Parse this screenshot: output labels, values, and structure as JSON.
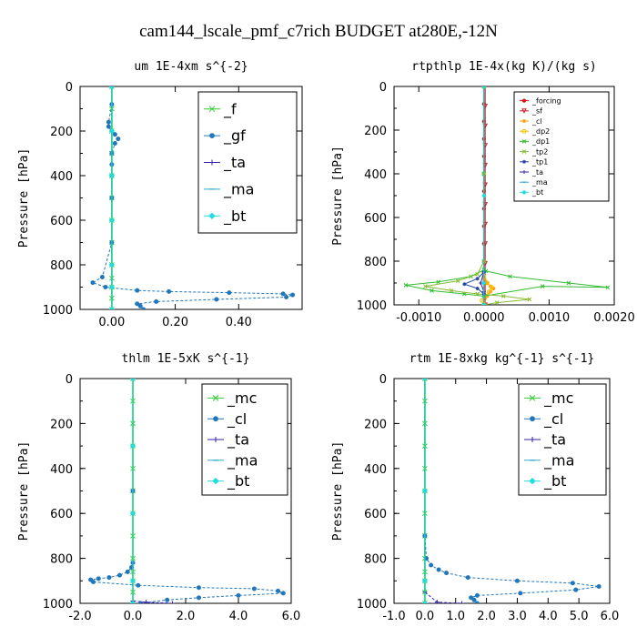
{
  "figure_title": "cam144_lscale_pmf_c7rich  BUDGET at280E,-12N",
  "colors": {
    "f": "#33cc33",
    "gf": "#2277bb",
    "ta": "#3322aa",
    "ma": "#33aacc",
    "bt": "#22dddd",
    "mc": "#33cc33",
    "cl": "#2277bb",
    "forcing": "#dd1111",
    "sf": "#cc2222",
    "cl_small": "#ff9900",
    "dp2": "#ffbb00",
    "dp1": "#33bb33",
    "tp2": "#88bb33",
    "tp1": "#2244aa",
    "bt_light": "#22dddd"
  },
  "chart_data": [
    {
      "type": "line",
      "title": "um   1E-4xm s^{-2}",
      "ylabel": "Pressure [hPa]",
      "xlim": [
        -0.1,
        0.6
      ],
      "ylim": [
        1000,
        0
      ],
      "xticks": [
        0.0,
        0.2,
        0.4
      ],
      "xtick_labels": [
        "0.00",
        "0.20",
        "0.40"
      ],
      "yticks": [
        0,
        200,
        400,
        600,
        800,
        1000
      ],
      "ytick_labels": [
        "0",
        "200",
        "400",
        "600",
        "800",
        "1000"
      ],
      "legend": {
        "position": "top-right",
        "size": "large"
      },
      "series": [
        {
          "name": "_f",
          "color_key": "f",
          "marker": "x",
          "dashed": false,
          "x": [
            0,
            0,
            0,
            0,
            0,
            0,
            0,
            0,
            0,
            0,
            0,
            0,
            0
          ],
          "y": [
            0,
            100,
            200,
            300,
            400,
            500,
            600,
            700,
            800,
            860,
            900,
            950,
            1000
          ]
        },
        {
          "name": "_gf",
          "color_key": "gf",
          "marker": "dot",
          "dashed": true,
          "x": [
            0,
            0.0,
            -0.01,
            -0.01,
            0.01,
            0.02,
            0.01,
            0.0,
            0.0,
            0.0,
            0.0,
            0.0,
            -0.03,
            -0.06,
            -0.02,
            0.08,
            0.18,
            0.37,
            0.54,
            0.57,
            0.55,
            0.33,
            0.14,
            0.08,
            0.09,
            0.1
          ],
          "y": [
            0,
            80,
            160,
            180,
            215,
            235,
            255,
            300,
            350,
            400,
            500,
            700,
            855,
            880,
            900,
            915,
            920,
            925,
            930,
            935,
            945,
            955,
            965,
            975,
            985,
            1000
          ]
        },
        {
          "name": "_ta",
          "color_key": "ta",
          "marker": "plus",
          "dashed": true,
          "x": [
            0,
            0,
            0,
            0,
            0,
            0,
            0
          ],
          "y": [
            0,
            200,
            400,
            600,
            800,
            900,
            1000
          ]
        },
        {
          "name": "_ma",
          "color_key": "ma",
          "marker": "dash",
          "dashed": true,
          "x": [
            0,
            0,
            0,
            0,
            0,
            0,
            0
          ],
          "y": [
            0,
            200,
            400,
            600,
            800,
            900,
            1000
          ]
        },
        {
          "name": "_bt",
          "color_key": "bt",
          "marker": "diamond",
          "dashed": false,
          "x": [
            0,
            0,
            0,
            0,
            0,
            0,
            0
          ],
          "y": [
            0,
            200,
            400,
            600,
            800,
            900,
            1000
          ]
        }
      ]
    },
    {
      "type": "line",
      "title": "rtpthlp   1E-4x(kg K)/(kg s)",
      "ylabel": "Pressure [hPa]",
      "xlim": [
        -0.00138,
        0.002
      ],
      "ylim": [
        1000,
        0
      ],
      "xticks": [
        -0.001,
        0.0,
        0.001,
        0.002
      ],
      "xtick_labels": [
        "-0.0010",
        "0.0000",
        "0.0010",
        "0.0020"
      ],
      "yticks": [
        0,
        200,
        400,
        600,
        800,
        1000
      ],
      "ytick_labels": [
        "0",
        "200",
        "400",
        "600",
        "800",
        "1000"
      ],
      "legend": {
        "position": "top-right",
        "size": "small"
      },
      "series": [
        {
          "name": "_forcing",
          "color_key": "forcing",
          "marker": "dot",
          "dashed": false,
          "x": [
            0,
            0,
            0,
            0,
            0,
            0,
            0,
            0,
            0,
            0,
            0,
            0,
            0
          ],
          "y": [
            0,
            80,
            160,
            240,
            320,
            400,
            480,
            560,
            640,
            720,
            800,
            900,
            1000
          ]
        },
        {
          "name": "_sf",
          "color_key": "sf",
          "marker": "triangle",
          "dashed": false,
          "x": [
            2e-05,
            2e-05,
            2e-05,
            2e-05,
            2e-05,
            2e-05,
            2e-05,
            2e-05,
            2e-05,
            2e-05,
            2e-05,
            2e-05
          ],
          "y": [
            0,
            90,
            180,
            270,
            360,
            450,
            540,
            630,
            720,
            810,
            900,
            1000
          ]
        },
        {
          "name": "_cl",
          "color_key": "cl_small",
          "marker": "star",
          "dashed": false,
          "x": [
            0,
            0,
            0,
            0,
            5e-05,
            0.0001,
            0.00015,
            0.0001,
            5e-05,
            0
          ],
          "y": [
            0,
            400,
            800,
            880,
            900,
            915,
            925,
            940,
            960,
            1000
          ]
        },
        {
          "name": "_dp2",
          "color_key": "dp2",
          "marker": "circle",
          "dashed": false,
          "x": [
            0,
            0,
            0,
            5e-05,
            0.00012,
            8e-05,
            2e-05,
            -3e-05,
            0
          ],
          "y": [
            0,
            400,
            850,
            900,
            920,
            940,
            960,
            980,
            1000
          ]
        },
        {
          "name": "_dp1",
          "color_key": "dp1",
          "marker": "x",
          "dashed": false,
          "x": [
            0,
            0,
            0,
            -0.0002,
            -0.0007,
            -0.0012,
            -0.0008,
            -0.0003,
            0.0,
            0.0009,
            0.0019,
            0.0013,
            0.0004,
            3e-05,
            0
          ],
          "y": [
            0,
            400,
            840,
            870,
            895,
            910,
            935,
            950,
            960,
            915,
            920,
            900,
            870,
            845,
            840
          ]
        },
        {
          "name": "_tp2",
          "color_key": "tp2",
          "marker": "x",
          "dashed": false,
          "x": [
            0,
            0,
            -0.0001,
            -0.0004,
            -0.0009,
            -0.0005,
            -0.0001,
            0.0003,
            0.0007,
            0.0002,
            0
          ],
          "y": [
            0,
            800,
            860,
            890,
            915,
            935,
            950,
            960,
            975,
            990,
            1000
          ]
        },
        {
          "name": "_tp1",
          "color_key": "tp1",
          "marker": "star",
          "dashed": false,
          "x": [
            0,
            0,
            -0.0001,
            -0.0003,
            -0.0001,
            0.0,
            0
          ],
          "y": [
            0,
            850,
            880,
            905,
            925,
            950,
            1000
          ]
        },
        {
          "name": "_ta",
          "color_key": "ta",
          "marker": "plus",
          "dashed": false,
          "x": [
            0,
            0,
            -5e-05,
            0.0,
            0
          ],
          "y": [
            0,
            850,
            900,
            940,
            1000
          ]
        },
        {
          "name": "_ma",
          "color_key": "ma",
          "marker": "dash",
          "dashed": false,
          "x": [
            0,
            0,
            0,
            0
          ],
          "y": [
            0,
            500,
            900,
            1000
          ]
        },
        {
          "name": "_bt",
          "color_key": "bt_light",
          "marker": "diamond",
          "dashed": false,
          "x": [
            0,
            0,
            0,
            0
          ],
          "y": [
            0,
            500,
            900,
            1000
          ]
        }
      ]
    },
    {
      "type": "line",
      "title": "thlm   1E-5xK s^{-1}",
      "ylabel": "Pressure [hPa]",
      "xlim": [
        -2.0,
        6.0
      ],
      "ylim": [
        1000,
        0
      ],
      "xticks": [
        -2.0,
        0.0,
        2.0,
        4.0,
        6.0
      ],
      "xtick_labels": [
        "-2.0",
        "0.0",
        "2.0",
        "4.0",
        "6.0"
      ],
      "yticks": [
        0,
        200,
        400,
        600,
        800,
        1000
      ],
      "ytick_labels": [
        "0",
        "200",
        "400",
        "600",
        "800",
        "1000"
      ],
      "legend": {
        "position": "top-right",
        "size": "large"
      },
      "series": [
        {
          "name": "_mc",
          "color_key": "mc",
          "marker": "x",
          "dashed": false,
          "x": [
            0,
            0,
            0,
            0,
            0,
            0,
            0,
            0,
            0,
            0,
            0,
            0,
            0
          ],
          "y": [
            0,
            100,
            200,
            300,
            400,
            500,
            600,
            700,
            800,
            860,
            900,
            950,
            1000
          ]
        },
        {
          "name": "_cl",
          "color_key": "cl",
          "marker": "dot",
          "dashed": true,
          "x": [
            0,
            0,
            0,
            -0.05,
            -0.2,
            -0.5,
            -0.9,
            -1.3,
            -1.6,
            -1.5,
            0.2,
            2.5,
            4.6,
            5.5,
            5.7,
            4.0,
            2.5,
            1.3,
            0.3
          ],
          "y": [
            0,
            500,
            820,
            840,
            860,
            875,
            885,
            890,
            895,
            905,
            920,
            930,
            935,
            945,
            955,
            965,
            975,
            985,
            1000
          ]
        },
        {
          "name": "_ta",
          "color_key": "ta",
          "marker": "plus",
          "dashed": true,
          "x": [
            0,
            0,
            0,
            0.5,
            1.5,
            0
          ],
          "y": [
            0,
            600,
            990,
            995,
            1000,
            1000
          ]
        },
        {
          "name": "_ma",
          "color_key": "ma",
          "marker": "dash",
          "dashed": true,
          "x": [
            0,
            0,
            0,
            0,
            0
          ],
          "y": [
            0,
            300,
            600,
            900,
            1000
          ]
        },
        {
          "name": "_bt",
          "color_key": "bt",
          "marker": "diamond",
          "dashed": false,
          "x": [
            0,
            0,
            0,
            0,
            0
          ],
          "y": [
            0,
            300,
            600,
            900,
            1000
          ]
        }
      ]
    },
    {
      "type": "line",
      "title": "rtm   1E-8xkg kg^{-1} s^{-1}",
      "ylabel": "Pressure [hPa]",
      "xlim": [
        -1.0,
        6.0
      ],
      "ylim": [
        1000,
        0
      ],
      "xticks": [
        -1.0,
        0.0,
        1.0,
        2.0,
        3.0,
        4.0,
        5.0,
        6.0
      ],
      "xtick_labels": [
        "-1.0",
        "0.0",
        "1.0",
        "2.0",
        "3.0",
        "4.0",
        "5.0",
        "6.0"
      ],
      "yticks": [
        0,
        200,
        400,
        600,
        800,
        1000
      ],
      "ytick_labels": [
        "0",
        "200",
        "400",
        "600",
        "800",
        "1000"
      ],
      "legend": {
        "position": "top-right",
        "size": "large"
      },
      "series": [
        {
          "name": "_mc",
          "color_key": "mc",
          "marker": "x",
          "dashed": false,
          "x": [
            0,
            0,
            0,
            0,
            0,
            0,
            0,
            0,
            0,
            0,
            0,
            0,
            0
          ],
          "y": [
            0,
            100,
            200,
            300,
            400,
            500,
            600,
            700,
            800,
            860,
            900,
            950,
            1000
          ]
        },
        {
          "name": "_cl",
          "color_key": "cl",
          "marker": "dot",
          "dashed": true,
          "x": [
            0,
            0,
            0.05,
            0.2,
            0.45,
            0.7,
            1.4,
            3.0,
            4.8,
            5.65,
            4.9,
            3.1,
            1.7,
            1.5,
            1.6,
            1.7
          ],
          "y": [
            0,
            700,
            800,
            830,
            850,
            865,
            885,
            900,
            910,
            925,
            940,
            955,
            965,
            975,
            985,
            1000
          ]
        },
        {
          "name": "_ta",
          "color_key": "ta",
          "marker": "plus",
          "dashed": true,
          "x": [
            0,
            0,
            0.4,
            1.2,
            0
          ],
          "y": [
            0,
            950,
            995,
            1000,
            1000
          ]
        },
        {
          "name": "_ma",
          "color_key": "ma",
          "marker": "dash",
          "dashed": true,
          "x": [
            0,
            0,
            0,
            0
          ],
          "y": [
            0,
            500,
            900,
            1000
          ]
        },
        {
          "name": "_bt",
          "color_key": "bt",
          "marker": "diamond",
          "dashed": false,
          "x": [
            0,
            0,
            0,
            0
          ],
          "y": [
            0,
            500,
            900,
            1000
          ]
        }
      ]
    }
  ]
}
